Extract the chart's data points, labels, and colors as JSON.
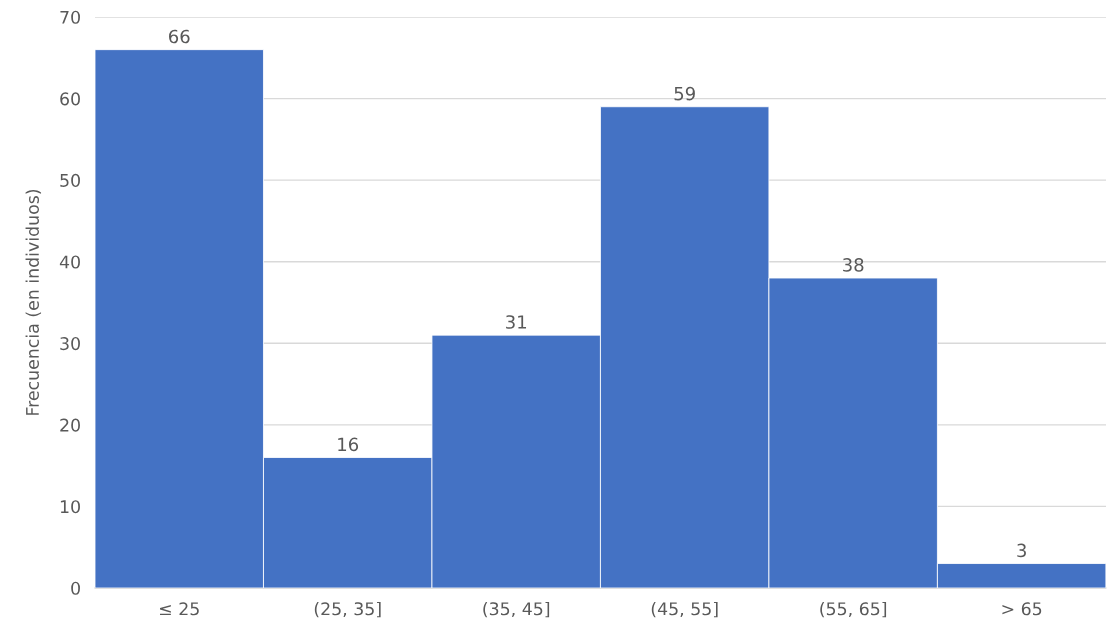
{
  "chart_data": {
    "type": "bar",
    "ylabel": "Frecuencia (en individuos)",
    "categories": [
      "≤ 25",
      "(25, 35]",
      "(35, 45]",
      "(45, 55]",
      "(55, 65]",
      "> 65"
    ],
    "values": [
      66,
      16,
      31,
      59,
      38,
      3
    ],
    "color": "#4472c4",
    "ylim": [
      0,
      70
    ],
    "yticks": [
      0,
      10,
      20,
      30,
      40,
      50,
      60,
      70
    ],
    "grid": "y",
    "data_labels": true
  }
}
